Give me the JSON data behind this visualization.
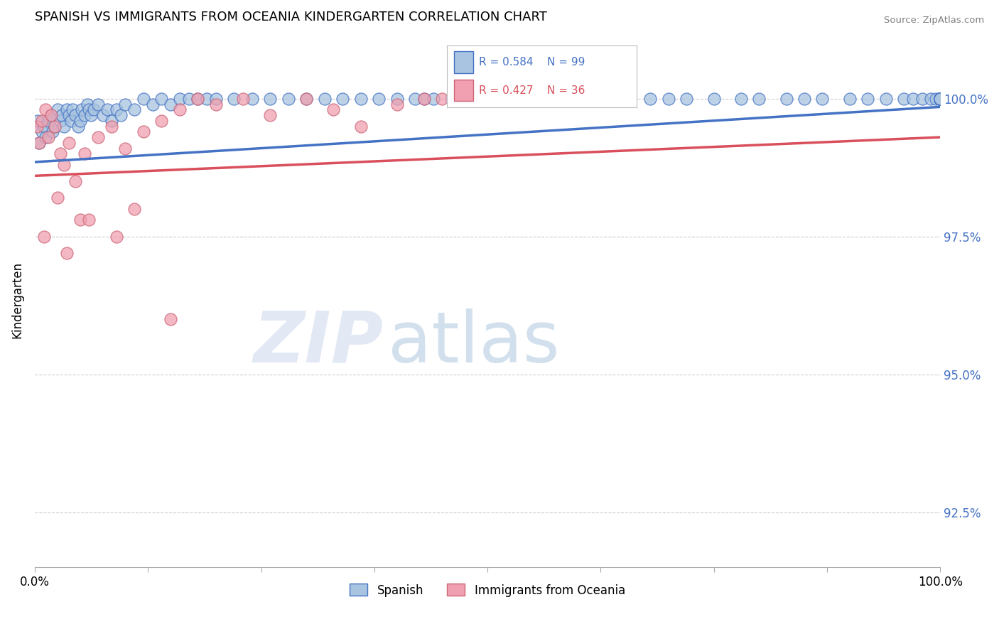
{
  "title": "SPANISH VS IMMIGRANTS FROM OCEANIA KINDERGARTEN CORRELATION CHART",
  "source_text": "Source: ZipAtlas.com",
  "ylabel": "Kindergarten",
  "xmin": 0.0,
  "xmax": 100.0,
  "ymin": 91.5,
  "ymax": 101.2,
  "ytick_labels": [
    "92.5%",
    "95.0%",
    "97.5%",
    "100.0%"
  ],
  "ytick_values": [
    92.5,
    95.0,
    97.5,
    100.0
  ],
  "xtick_labels": [
    "0.0%",
    "100.0%"
  ],
  "xtick_values": [
    0.0,
    100.0
  ],
  "legend_R1": "R = 0.584",
  "legend_N1": "N = 99",
  "legend_R2": "R = 0.427",
  "legend_N2": "N = 36",
  "color_spanish": "#a8c4e0",
  "color_oceania": "#f0a0b0",
  "color_line_spanish": "#4472c4",
  "color_line_oceania": "#d94f5c",
  "watermark_zip": "ZIP",
  "watermark_atlas": "atlas",
  "background_color": "#ffffff",
  "grid_color": "#cccccc",
  "spanish_x": [
    0.3,
    0.5,
    0.8,
    1.0,
    1.2,
    1.5,
    1.8,
    2.0,
    2.2,
    2.5,
    2.8,
    3.0,
    3.2,
    3.5,
    3.8,
    4.0,
    4.2,
    4.5,
    4.8,
    5.0,
    5.2,
    5.5,
    5.8,
    6.0,
    6.2,
    6.5,
    7.0,
    7.5,
    8.0,
    8.5,
    9.0,
    9.5,
    10.0,
    11.0,
    12.0,
    13.0,
    14.0,
    15.0,
    16.0,
    17.0,
    18.0,
    19.0,
    20.0,
    22.0,
    24.0,
    26.0,
    28.0,
    30.0,
    32.0,
    34.0,
    36.0,
    38.0,
    40.0,
    42.0,
    43.0,
    44.0,
    46.0,
    47.0,
    48.0,
    49.0,
    50.0,
    52.0,
    54.0,
    55.0,
    57.0,
    58.0,
    60.0,
    62.0,
    65.0,
    68.0,
    70.0,
    72.0,
    75.0,
    78.0,
    80.0,
    83.0,
    85.0,
    87.0,
    90.0,
    92.0,
    94.0,
    96.0,
    97.0,
    98.0,
    99.0,
    99.5,
    100.0,
    100.0,
    100.0,
    100.0,
    100.0,
    100.0,
    100.0,
    100.0,
    100.0,
    100.0,
    100.0,
    100.0,
    100.0
  ],
  "spanish_y": [
    99.6,
    99.2,
    99.4,
    99.5,
    99.3,
    99.6,
    99.7,
    99.4,
    99.5,
    99.8,
    99.6,
    99.7,
    99.5,
    99.8,
    99.7,
    99.6,
    99.8,
    99.7,
    99.5,
    99.6,
    99.8,
    99.7,
    99.9,
    99.8,
    99.7,
    99.8,
    99.9,
    99.7,
    99.8,
    99.6,
    99.8,
    99.7,
    99.9,
    99.8,
    100.0,
    99.9,
    100.0,
    99.9,
    100.0,
    100.0,
    100.0,
    100.0,
    100.0,
    100.0,
    100.0,
    100.0,
    100.0,
    100.0,
    100.0,
    100.0,
    100.0,
    100.0,
    100.0,
    100.0,
    100.0,
    100.0,
    100.0,
    100.0,
    100.0,
    100.0,
    100.0,
    100.0,
    100.0,
    100.0,
    100.0,
    100.0,
    100.0,
    100.0,
    100.0,
    100.0,
    100.0,
    100.0,
    100.0,
    100.0,
    100.0,
    100.0,
    100.0,
    100.0,
    100.0,
    100.0,
    100.0,
    100.0,
    100.0,
    100.0,
    100.0,
    100.0,
    100.0,
    100.0,
    100.0,
    100.0,
    100.0,
    100.0,
    100.0,
    100.0,
    100.0,
    100.0,
    100.0,
    100.0,
    100.0
  ],
  "oceania_x": [
    0.2,
    0.5,
    0.8,
    1.2,
    1.5,
    1.8,
    2.2,
    2.8,
    3.2,
    3.8,
    4.5,
    5.5,
    7.0,
    8.5,
    10.0,
    12.0,
    14.0,
    16.0,
    18.0,
    20.0,
    23.0,
    26.0,
    30.0,
    33.0,
    36.0,
    40.0,
    43.0,
    45.0,
    5.0,
    2.5,
    1.0,
    3.5,
    6.0,
    9.0,
    11.0,
    15.0
  ],
  "oceania_y": [
    99.5,
    99.2,
    99.6,
    99.8,
    99.3,
    99.7,
    99.5,
    99.0,
    98.8,
    99.2,
    98.5,
    99.0,
    99.3,
    99.5,
    99.1,
    99.4,
    99.6,
    99.8,
    100.0,
    99.9,
    100.0,
    99.7,
    100.0,
    99.8,
    99.5,
    99.9,
    100.0,
    100.0,
    97.8,
    98.2,
    97.5,
    97.2,
    97.8,
    97.5,
    98.0,
    96.0
  ],
  "trend_spanish_x0": 0.0,
  "trend_spanish_y0": 98.85,
  "trend_spanish_x1": 100.0,
  "trend_spanish_y1": 99.85,
  "trend_oceania_x0": 0.0,
  "trend_oceania_y0": 98.6,
  "trend_oceania_x1": 100.0,
  "trend_oceania_y1": 99.3
}
